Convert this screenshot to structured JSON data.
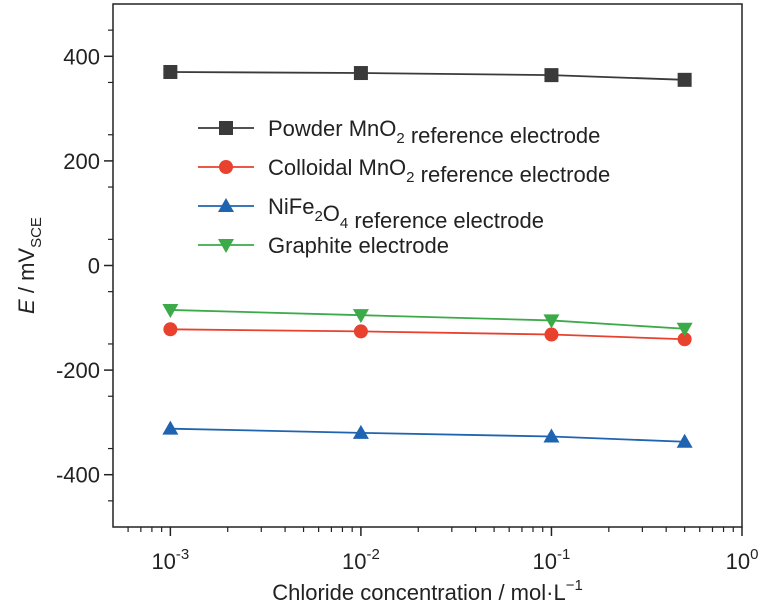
{
  "chart_data": {
    "type": "line",
    "x_scale": "log",
    "x": [
      0.001,
      0.01,
      0.1,
      0.5
    ],
    "xlim": [
      0.0005,
      1
    ],
    "ylim": [
      -500,
      500
    ],
    "xticks": [
      {
        "value": 0.001,
        "base": "10",
        "exp": "-3"
      },
      {
        "value": 0.01,
        "base": "10",
        "exp": "-2"
      },
      {
        "value": 0.1,
        "base": "10",
        "exp": "-1"
      },
      {
        "value": 1,
        "base": "10",
        "exp": "0"
      }
    ],
    "yticks": [
      {
        "value": 400,
        "label": "400"
      },
      {
        "value": 200,
        "label": "200"
      },
      {
        "value": 0,
        "label": "0"
      },
      {
        "value": -200,
        "label": "-200"
      },
      {
        "value": -400,
        "label": "-400"
      }
    ],
    "xlabel": {
      "main": "Chloride concentration / mol·L",
      "sup": "−1"
    },
    "ylabel": {
      "italic": "E",
      "main": " / mV",
      "sub": "SCE"
    },
    "legend_position": "upper-center",
    "grid": false,
    "series": [
      {
        "name_parts": [
          [
            "Powder MnO",
            ""
          ],
          [
            "2",
            "sub"
          ],
          [
            " reference electrode",
            ""
          ]
        ],
        "values": [
          370,
          368,
          364,
          355
        ],
        "color": "#3a3a3a",
        "marker": "square"
      },
      {
        "name_parts": [
          [
            "Colloidal MnO",
            ""
          ],
          [
            "2",
            "sub"
          ],
          [
            " reference electrode",
            ""
          ]
        ],
        "values": [
          -122,
          -126,
          -132,
          -141
        ],
        "color": "#e8412e",
        "marker": "circle"
      },
      {
        "name_parts": [
          [
            "NiFe",
            ""
          ],
          [
            "2",
            "sub"
          ],
          [
            "O",
            ""
          ],
          [
            "4",
            "sub"
          ],
          [
            " reference electrode",
            ""
          ]
        ],
        "values": [
          -312,
          -320,
          -327,
          -337
        ],
        "color": "#1f64b0",
        "marker": "triangle-up"
      },
      {
        "name_parts": [
          [
            "Graphite electrode",
            ""
          ]
        ],
        "values": [
          -85,
          -95,
          -105,
          -121
        ],
        "color": "#3daa4a",
        "marker": "triangle-down"
      }
    ]
  }
}
